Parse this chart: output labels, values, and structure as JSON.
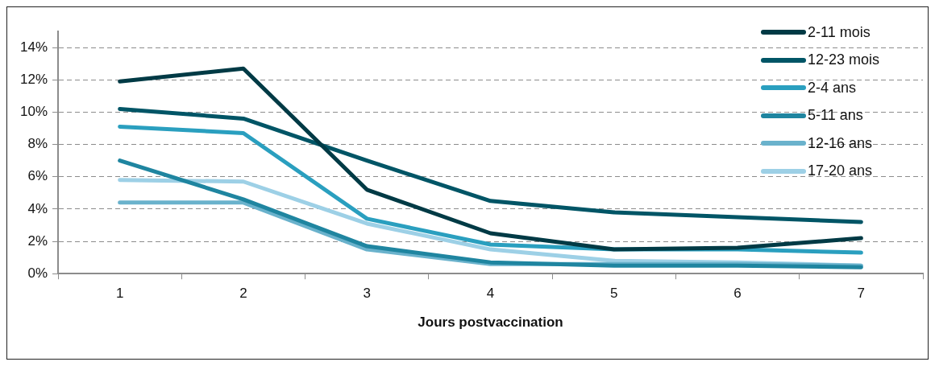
{
  "chart_data": {
    "type": "line",
    "xlabel": "Jours postvaccination",
    "categories": [
      "1",
      "2",
      "3",
      "4",
      "5",
      "6",
      "7"
    ],
    "ylim": [
      0,
      15
    ],
    "yticks": [
      {
        "value": 0,
        "label": "0%"
      },
      {
        "value": 2,
        "label": "2%"
      },
      {
        "value": 4,
        "label": "4%"
      },
      {
        "value": 6,
        "label": "6%"
      },
      {
        "value": 8,
        "label": "8%"
      },
      {
        "value": 10,
        "label": "10%"
      },
      {
        "value": 12,
        "label": "12%"
      },
      {
        "value": 14,
        "label": "14%"
      }
    ],
    "grid": "y",
    "legend": "top right",
    "marker": "none",
    "line_style": "solid",
    "series": [
      {
        "name": "2-11 mois",
        "color": "#003a45",
        "values": [
          11.9,
          12.7,
          5.2,
          2.5,
          1.5,
          1.6,
          2.2
        ]
      },
      {
        "name": "12-23 mois",
        "color": "#005566",
        "values": [
          10.2,
          9.6,
          7.0,
          4.5,
          3.8,
          3.5,
          3.2
        ]
      },
      {
        "name": "2-4 ans",
        "color": "#2a9fbf",
        "values": [
          9.1,
          8.7,
          3.4,
          1.8,
          1.5,
          1.5,
          1.3
        ]
      },
      {
        "name": "5-11 ans",
        "color": "#1f85a0",
        "values": [
          7.0,
          4.6,
          1.7,
          0.7,
          0.5,
          0.5,
          0.4
        ]
      },
      {
        "name": "12-16 ans",
        "color": "#6ab2cc",
        "values": [
          4.4,
          4.4,
          1.5,
          0.6,
          0.6,
          0.6,
          0.5
        ]
      },
      {
        "name": "17-20 ans",
        "color": "#9dd0e6",
        "values": [
          5.8,
          5.7,
          3.1,
          1.5,
          0.8,
          0.7,
          0.5
        ]
      }
    ]
  }
}
